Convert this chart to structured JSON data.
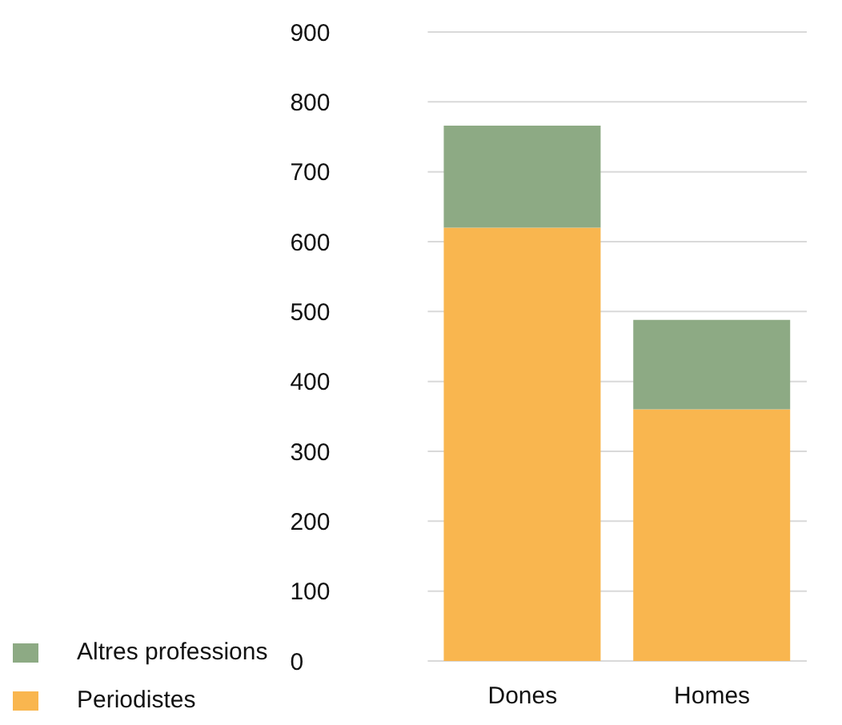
{
  "chart_data": {
    "type": "bar",
    "stacked": true,
    "categories": [
      "Dones",
      "Homes"
    ],
    "series": [
      {
        "name": "Periodistes",
        "color": "#f9b64f",
        "values": [
          620,
          360
        ]
      },
      {
        "name": "Altres professions",
        "color": "#8daa84",
        "values": [
          146,
          128
        ]
      }
    ],
    "ylim": [
      0,
      900
    ],
    "yticks": [
      0,
      100,
      200,
      300,
      400,
      500,
      600,
      700,
      800,
      900
    ],
    "grid": "y",
    "legend": "bottom left"
  }
}
